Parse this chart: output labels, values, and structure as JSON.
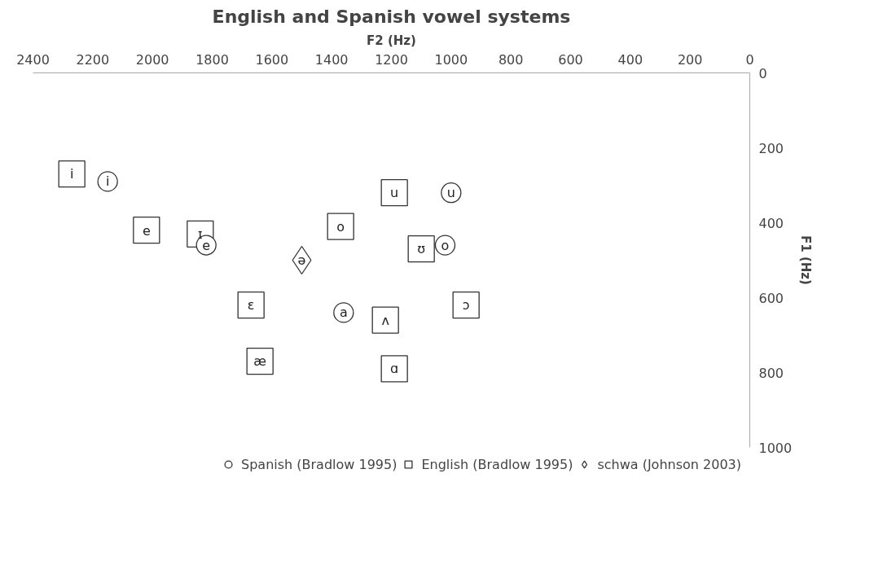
{
  "chart_data": {
    "type": "scatter",
    "title": "English and Spanish vowel systems",
    "xlabel": "F2 (Hz)",
    "ylabel": "F1 (Hz)",
    "xlim": [
      2400,
      0
    ],
    "xticks": [
      2400,
      2200,
      2000,
      1800,
      1600,
      1400,
      1200,
      1000,
      800,
      600,
      400,
      200,
      0
    ],
    "ylim": [
      1000,
      0
    ],
    "yticks": [
      0,
      200,
      400,
      600,
      800,
      1000
    ],
    "grid": false,
    "legend": "bottom",
    "series": [
      {
        "name": "Spanish (Bradlow 1995)",
        "color": "#333333",
        "marker": "circle",
        "x": [
          2150,
          1000,
          1820,
          1020,
          1360
        ],
        "values": [
          290,
          320,
          460,
          460,
          640
        ]
      },
      {
        "name": "English (Bradlow 1995)",
        "color": "#333333",
        "marker": "square",
        "x": [
          2270,
          1190,
          2020,
          1840,
          1370,
          1100,
          1670,
          950,
          1220,
          1640,
          1190
        ],
        "values": [
          270,
          320,
          420,
          430,
          410,
          470,
          620,
          620,
          660,
          770,
          790
        ]
      },
      {
        "name": "schwa (Johnson 2003)",
        "color": "#333333",
        "marker": "diamond",
        "x": [
          1500
        ],
        "values": [
          500
        ]
      }
    ],
    "annotations": [
      {
        "text": "i",
        "x": 2150,
        "y": 290
      },
      {
        "text": "u",
        "x": 1000,
        "y": 320
      },
      {
        "text": "e",
        "x": 1820,
        "y": 460
      },
      {
        "text": "o",
        "x": 1020,
        "y": 460
      },
      {
        "text": "a",
        "x": 1360,
        "y": 640
      },
      {
        "text": "i",
        "x": 2270,
        "y": 270
      },
      {
        "text": "u",
        "x": 1190,
        "y": 320
      },
      {
        "text": "e",
        "x": 2020,
        "y": 420
      },
      {
        "text": "ɪ",
        "x": 1840,
        "y": 430
      },
      {
        "text": "o",
        "x": 1370,
        "y": 410
      },
      {
        "text": "ʊ",
        "x": 1100,
        "y": 470
      },
      {
        "text": "ɛ",
        "x": 1670,
        "y": 620
      },
      {
        "text": "ɔ",
        "x": 950,
        "y": 620
      },
      {
        "text": "ʌ",
        "x": 1220,
        "y": 660
      },
      {
        "text": "æ",
        "x": 1640,
        "y": 770
      },
      {
        "text": "ɑ",
        "x": 1190,
        "y": 790
      },
      {
        "text": "ə",
        "x": 1500,
        "y": 500
      }
    ]
  }
}
